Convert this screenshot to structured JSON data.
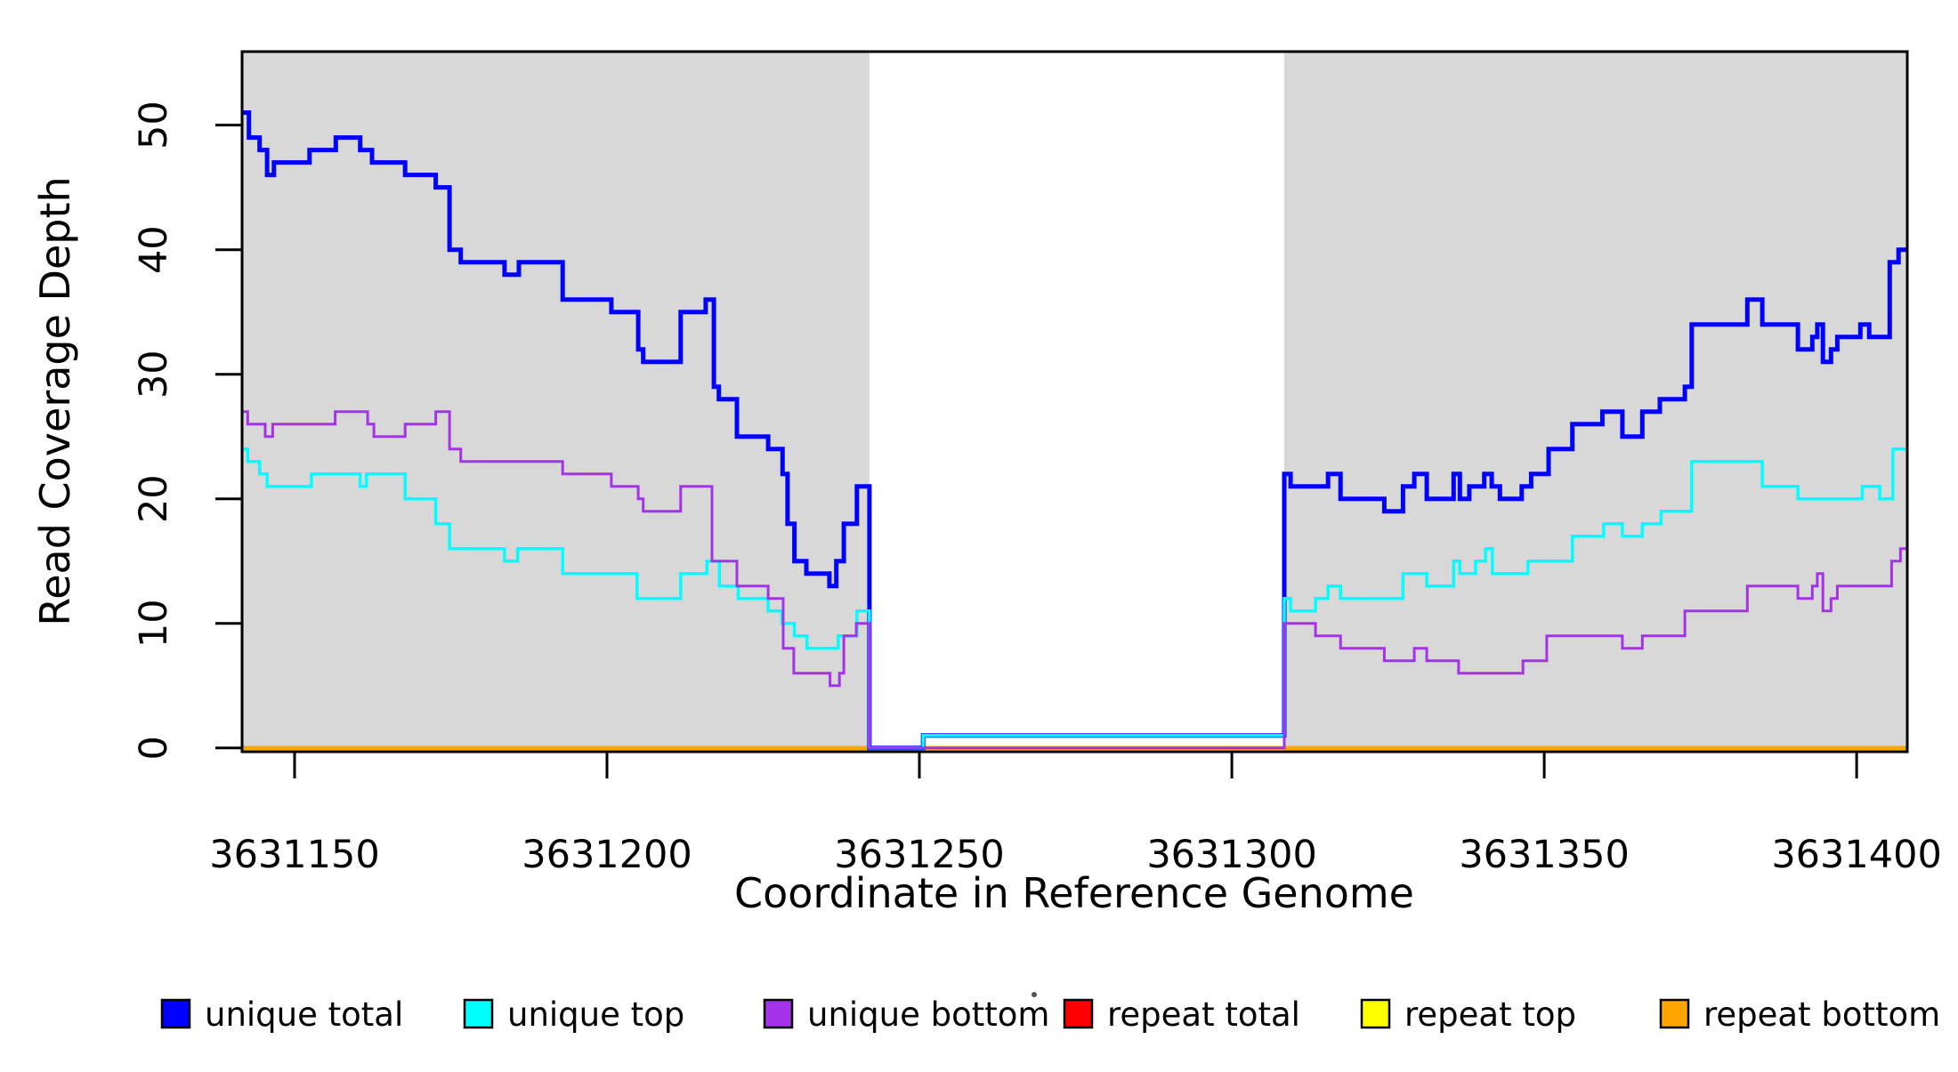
{
  "chart_data": {
    "type": "step",
    "title": "",
    "xlabel": "Coordinate in Reference Genome",
    "ylabel": "Read Coverage Depth",
    "xlim": [
      3631141.6,
      3631408.1
    ],
    "ylim": [
      -0.3,
      55.9
    ],
    "x_ticks": [
      3631150,
      3631200,
      3631250,
      3631300,
      3631350,
      3631400
    ],
    "y_ticks": [
      0,
      10,
      20,
      30,
      40,
      50
    ],
    "grid": "off",
    "legend_position": "bottom",
    "background_color": "#ffffff",
    "masked_region_color": "#d8d8d8",
    "background_regions": [
      {
        "name": "masked-left",
        "x0": 3631141.6,
        "x1": 3631242.0
      },
      {
        "name": "masked-right",
        "x0": 3631308.4,
        "x1": 3631408.1
      }
    ],
    "series": [
      {
        "name": "unique total",
        "color": "#0000ff",
        "points": [
          [
            3631141.6,
            51
          ],
          [
            3631142.7,
            49
          ],
          [
            3631144.4,
            48
          ],
          [
            3631145.6,
            46
          ],
          [
            3631146.7,
            47
          ],
          [
            3631152.4,
            48
          ],
          [
            3631156.6,
            49
          ],
          [
            3631160.5,
            48
          ],
          [
            3631162.4,
            47
          ],
          [
            3631167.7,
            46
          ],
          [
            3631172.6,
            45
          ],
          [
            3631174.8,
            40
          ],
          [
            3631176.6,
            39
          ],
          [
            3631183.6,
            38
          ],
          [
            3631185.9,
            39
          ],
          [
            3631192.9,
            36
          ],
          [
            3631200.7,
            35
          ],
          [
            3631205.0,
            32
          ],
          [
            3631205.8,
            31
          ],
          [
            3631211.8,
            35
          ],
          [
            3631215.8,
            36
          ],
          [
            3631217.1,
            29
          ],
          [
            3631217.9,
            28
          ],
          [
            3631220.8,
            25
          ],
          [
            3631225.8,
            24
          ],
          [
            3631228.1,
            22
          ],
          [
            3631228.9,
            18
          ],
          [
            3631230.0,
            15
          ],
          [
            3631231.9,
            14
          ],
          [
            3631235.6,
            13
          ],
          [
            3631236.7,
            15
          ],
          [
            3631237.9,
            18
          ],
          [
            3631240.0,
            21
          ],
          [
            3631242.0,
            0
          ],
          [
            3631250.6,
            1
          ],
          [
            3631308.4,
            22
          ],
          [
            3631309.4,
            21
          ],
          [
            3631315.4,
            22
          ],
          [
            3631317.4,
            20
          ],
          [
            3631324.4,
            19
          ],
          [
            3631327.4,
            21
          ],
          [
            3631329.2,
            22
          ],
          [
            3631331.2,
            20
          ],
          [
            3631335.5,
            22
          ],
          [
            3631336.5,
            20
          ],
          [
            3631338.0,
            21
          ],
          [
            3631340.4,
            22
          ],
          [
            3631341.6,
            21
          ],
          [
            3631342.9,
            20
          ],
          [
            3631346.4,
            21
          ],
          [
            3631347.9,
            22
          ],
          [
            3631350.7,
            24
          ],
          [
            3631354.5,
            26
          ],
          [
            3631359.3,
            27
          ],
          [
            3631362.5,
            25
          ],
          [
            3631365.7,
            27
          ],
          [
            3631368.5,
            28
          ],
          [
            3631372.5,
            29
          ],
          [
            3631373.6,
            34
          ],
          [
            3631382.5,
            36
          ],
          [
            3631384.9,
            34
          ],
          [
            3631390.6,
            32
          ],
          [
            3631392.9,
            33
          ],
          [
            3631393.7,
            34
          ],
          [
            3631394.6,
            31
          ],
          [
            3631395.9,
            32
          ],
          [
            3631396.9,
            33
          ],
          [
            3631400.6,
            34
          ],
          [
            3631402.0,
            33
          ],
          [
            3631405.3,
            39
          ],
          [
            3631406.7,
            40
          ]
        ]
      },
      {
        "name": "unique top",
        "color": "#00ffff",
        "points": [
          [
            3631141.6,
            24
          ],
          [
            3631142.5,
            23
          ],
          [
            3631144.4,
            22
          ],
          [
            3631145.6,
            21
          ],
          [
            3631152.7,
            22
          ],
          [
            3631160.5,
            21
          ],
          [
            3631161.5,
            22
          ],
          [
            3631167.7,
            20
          ],
          [
            3631172.6,
            18
          ],
          [
            3631174.8,
            16
          ],
          [
            3631183.6,
            15
          ],
          [
            3631185.7,
            16
          ],
          [
            3631192.9,
            14
          ],
          [
            3631204.8,
            12
          ],
          [
            3631211.8,
            14
          ],
          [
            3631216.0,
            15
          ],
          [
            3631218.0,
            13
          ],
          [
            3631221.0,
            12
          ],
          [
            3631225.8,
            11
          ],
          [
            3631228.0,
            10
          ],
          [
            3631230.0,
            9
          ],
          [
            3631232.0,
            8
          ],
          [
            3631237.0,
            9
          ],
          [
            3631240.0,
            11
          ],
          [
            3631242.0,
            0
          ],
          [
            3631250.6,
            1
          ],
          [
            3631308.4,
            12
          ],
          [
            3631309.4,
            11
          ],
          [
            3631313.4,
            12
          ],
          [
            3631315.4,
            13
          ],
          [
            3631317.4,
            12
          ],
          [
            3631327.4,
            14
          ],
          [
            3631331.2,
            13
          ],
          [
            3631335.5,
            15
          ],
          [
            3631336.5,
            14
          ],
          [
            3631339.0,
            15
          ],
          [
            3631340.6,
            16
          ],
          [
            3631341.7,
            14
          ],
          [
            3631347.4,
            15
          ],
          [
            3631354.5,
            17
          ],
          [
            3631359.5,
            18
          ],
          [
            3631362.5,
            17
          ],
          [
            3631365.7,
            18
          ],
          [
            3631368.7,
            19
          ],
          [
            3631373.6,
            23
          ],
          [
            3631384.9,
            21
          ],
          [
            3631390.6,
            20
          ],
          [
            3631400.9,
            21
          ],
          [
            3631403.7,
            20
          ],
          [
            3631405.8,
            24
          ]
        ]
      },
      {
        "name": "unique bottom",
        "color": "#a433e8",
        "points": [
          [
            3631141.6,
            27
          ],
          [
            3631142.5,
            26
          ],
          [
            3631145.3,
            25
          ],
          [
            3631146.5,
            26
          ],
          [
            3631156.5,
            27
          ],
          [
            3631161.7,
            26
          ],
          [
            3631162.7,
            25
          ],
          [
            3631167.7,
            26
          ],
          [
            3631172.6,
            27
          ],
          [
            3631174.8,
            24
          ],
          [
            3631176.6,
            23
          ],
          [
            3631192.9,
            22
          ],
          [
            3631200.7,
            21
          ],
          [
            3631205.0,
            20
          ],
          [
            3631205.8,
            19
          ],
          [
            3631211.8,
            21
          ],
          [
            3631216.8,
            15
          ],
          [
            3631220.8,
            13
          ],
          [
            3631225.8,
            12
          ],
          [
            3631228.2,
            8
          ],
          [
            3631229.9,
            6
          ],
          [
            3631235.7,
            5
          ],
          [
            3631237.2,
            6
          ],
          [
            3631237.9,
            9
          ],
          [
            3631239.9,
            10
          ],
          [
            3631242.0,
            0
          ],
          [
            3631308.4,
            10
          ],
          [
            3631313.4,
            9
          ],
          [
            3631317.4,
            8
          ],
          [
            3631324.4,
            7
          ],
          [
            3631329.2,
            8
          ],
          [
            3631331.2,
            7
          ],
          [
            3631336.3,
            6
          ],
          [
            3631346.6,
            7
          ],
          [
            3631350.4,
            9
          ],
          [
            3631362.5,
            8
          ],
          [
            3631365.7,
            9
          ],
          [
            3631372.5,
            11
          ],
          [
            3631382.5,
            13
          ],
          [
            3631390.6,
            12
          ],
          [
            3631392.9,
            13
          ],
          [
            3631393.7,
            14
          ],
          [
            3631394.6,
            11
          ],
          [
            3631395.9,
            12
          ],
          [
            3631396.9,
            13
          ],
          [
            3631405.6,
            15
          ],
          [
            3631407.0,
            16
          ]
        ]
      },
      {
        "name": "repeat total",
        "color": "#ff0000",
        "points": [
          [
            3631141.6,
            0
          ]
        ]
      },
      {
        "name": "repeat top",
        "color": "#ffff00",
        "points": [
          [
            3631141.6,
            0
          ]
        ]
      },
      {
        "name": "repeat bottom",
        "color": "#ffa500",
        "points": [
          [
            3631141.6,
            0
          ]
        ]
      }
    ]
  },
  "legend": {
    "entries": [
      {
        "label": "unique total",
        "color": "#0000ff"
      },
      {
        "label": "unique top",
        "color": "#00ffff"
      },
      {
        "label": "unique bottom",
        "color": "#a433e8"
      },
      {
        "label": "repeat total",
        "color": "#ff0000"
      },
      {
        "label": "repeat top",
        "color": "#ffff00"
      },
      {
        "label": "repeat bottom",
        "color": "#ffa500"
      }
    ]
  }
}
